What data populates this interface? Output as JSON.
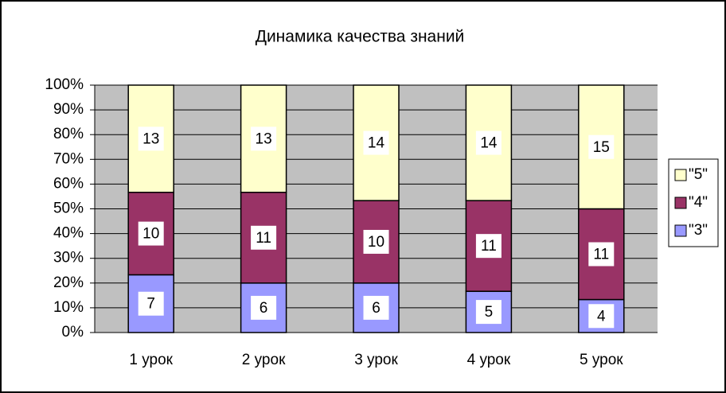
{
  "chart_data": {
    "type": "bar",
    "stacking": "percent",
    "title": "Динамика  качества  знаний",
    "categories": [
      "1 урок",
      "2 урок",
      "3 урок",
      "4 урок",
      "5 урок"
    ],
    "series": [
      {
        "name": "\"3\"",
        "color": "#9999ff",
        "values": [
          7,
          6,
          6,
          5,
          4
        ]
      },
      {
        "name": "\"4\"",
        "color": "#993366",
        "values": [
          10,
          11,
          10,
          11,
          11
        ]
      },
      {
        "name": "\"5\"",
        "color": "#ffffcc",
        "values": [
          13,
          13,
          14,
          14,
          15
        ]
      }
    ],
    "ylim": [
      0,
      100
    ],
    "yticks": [
      {
        "value": 0,
        "label": "0%"
      },
      {
        "value": 10,
        "label": "10%"
      },
      {
        "value": 20,
        "label": "20%"
      },
      {
        "value": 30,
        "label": "30%"
      },
      {
        "value": 40,
        "label": "40%"
      },
      {
        "value": 50,
        "label": "50%"
      },
      {
        "value": 60,
        "label": "60%"
      },
      {
        "value": 70,
        "label": "70%"
      },
      {
        "value": 80,
        "label": "80%"
      },
      {
        "value": 90,
        "label": "90%"
      },
      {
        "value": 100,
        "label": "100%"
      }
    ],
    "grid": true,
    "legend": "right",
    "plot_background": "#c0c0c0"
  }
}
